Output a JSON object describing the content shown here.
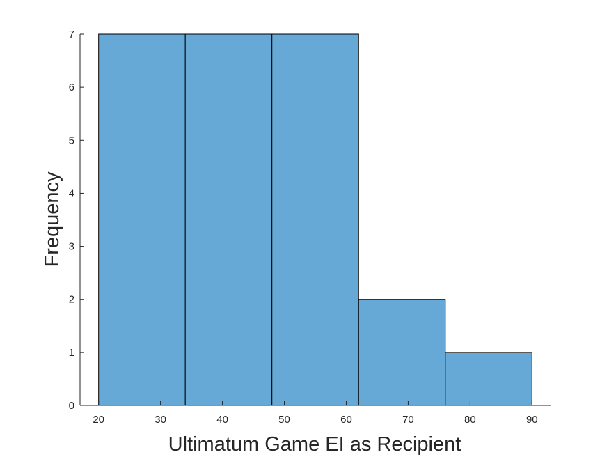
{
  "chart_data": {
    "type": "bar",
    "subtype": "histogram",
    "title": "",
    "xlabel": "Ultimatum Game EI as Recipient",
    "ylabel": "Frequency",
    "xlim": [
      17,
      93
    ],
    "ylim": [
      0,
      7
    ],
    "xticks": [
      20,
      30,
      40,
      50,
      60,
      70,
      80,
      90
    ],
    "yticks": [
      0,
      1,
      2,
      3,
      4,
      5,
      6,
      7
    ],
    "bins": [
      {
        "x0": 20,
        "x1": 34,
        "value": 7
      },
      {
        "x0": 34,
        "x1": 48,
        "value": 7
      },
      {
        "x0": 48,
        "x1": 62,
        "value": 7
      },
      {
        "x0": 62,
        "x1": 76,
        "value": 2
      },
      {
        "x0": 76,
        "x1": 90,
        "value": 1
      }
    ],
    "bar_color": "#66a9d7",
    "edge_color": "#000000",
    "grid": false
  }
}
